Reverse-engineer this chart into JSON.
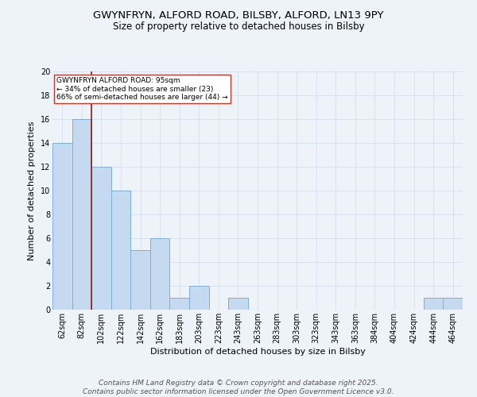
{
  "title1": "GWYNFRYN, ALFORD ROAD, BILSBY, ALFORD, LN13 9PY",
  "title2": "Size of property relative to detached houses in Bilsby",
  "xlabel": "Distribution of detached houses by size in Bilsby",
  "ylabel": "Number of detached properties",
  "bins": [
    "62sqm",
    "82sqm",
    "102sqm",
    "122sqm",
    "142sqm",
    "162sqm",
    "183sqm",
    "203sqm",
    "223sqm",
    "243sqm",
    "263sqm",
    "283sqm",
    "303sqm",
    "323sqm",
    "343sqm",
    "363sqm",
    "384sqm",
    "404sqm",
    "424sqm",
    "444sqm",
    "464sqm"
  ],
  "values": [
    14,
    16,
    12,
    10,
    5,
    6,
    1,
    2,
    0,
    1,
    0,
    0,
    0,
    0,
    0,
    0,
    0,
    0,
    0,
    1,
    1
  ],
  "bar_color": "#c5d9f0",
  "bar_edge_color": "#7ab0d8",
  "vline_color": "#8b1a1a",
  "vline_position": 1.5,
  "ylim": [
    0,
    20
  ],
  "yticks": [
    0,
    2,
    4,
    6,
    8,
    10,
    12,
    14,
    16,
    18,
    20
  ],
  "annotation_text": "GWYNFRYN ALFORD ROAD: 95sqm\n← 34% of detached houses are smaller (23)\n66% of semi-detached houses are larger (44) →",
  "annotation_box_color": "#ffffff",
  "annotation_box_edgecolor": "#c0392b",
  "footer_text": "Contains HM Land Registry data © Crown copyright and database right 2025.\nContains public sector information licensed under the Open Government Licence v3.0.",
  "bg_color": "#eef2f9",
  "grid_color": "#d8e2ef",
  "title1_fontsize": 9.5,
  "title2_fontsize": 8.5,
  "label_fontsize": 8,
  "tick_fontsize": 7,
  "annot_fontsize": 6.5,
  "footer_fontsize": 6.5
}
